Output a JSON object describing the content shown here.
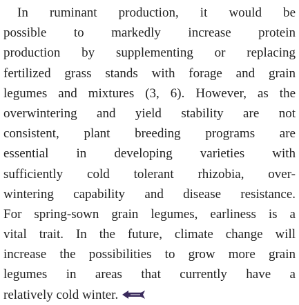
{
  "paragraph": {
    "lines": [
      "In ruminant production, it would be",
      "possible to markedly increase protein",
      "production by supplementing or replacing",
      "fertilized grass stands with forage and grain",
      "legumes and mixtures (3, 6). However, as the",
      "overwintering and yield stability are not",
      "consistent, plant breeding programs are",
      "essential in developing varieties with",
      "sufficiently cold tolerant rhizobia, over-",
      "wintering capability and disease resistance.",
      "For spring-sown grain legumes, earliness is a",
      "vital trait. In the future, climate change will",
      "increase the possibilities to grow more grain",
      "legumes in areas that currently have a",
      "relatively cold winter."
    ]
  }
}
